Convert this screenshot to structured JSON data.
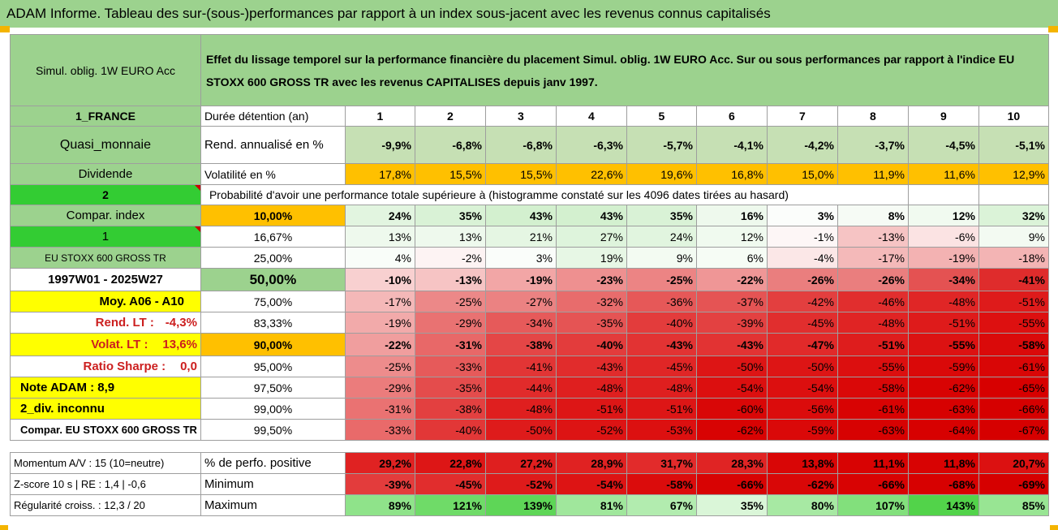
{
  "title": "ADAM Informe. Tableau des sur-(sous-)performances par rapport à un index sous-jacent avec les revenus connus capitalisés",
  "header": {
    "fund_name": "Simul. oblig. 1W EURO Acc",
    "description": "Effet du lissage temporel sur la performance financière du placement Simul. oblig. 1W EURO Acc. Sur ou sous performances par rapport à l'indice EU STOXX 600 GROSS TR avec les revenus CAPITALISES depuis janv 1997."
  },
  "duration_label": "Durée détention (an)",
  "durations": [
    "1",
    "2",
    "3",
    "4",
    "5",
    "6",
    "7",
    "8",
    "9",
    "10"
  ],
  "rend_label": "Rend. annualisé en %",
  "rend": [
    "-9,9%",
    "-6,8%",
    "-6,8%",
    "-6,3%",
    "-5,7%",
    "-4,1%",
    "-4,2%",
    "-3,7%",
    "-4,5%",
    "-5,1%"
  ],
  "vol_label": "Volatilité en %",
  "vol": [
    "17,8%",
    "15,5%",
    "15,5%",
    "22,6%",
    "19,6%",
    "16,8%",
    "15,0%",
    "11,9%",
    "11,6%",
    "12,9%"
  ],
  "prob_label": "Probabilité d'avoir une performance totale supérieure à (histogramme constaté sur les 4096 dates tirées au hasard)",
  "left": {
    "country": "1_FRANCE",
    "category": "Quasi_monnaie",
    "dividend": "Dividende",
    "num2": "2",
    "compar_index": "Compar. index",
    "num1": "1",
    "index_name": "EU STOXX 600 GROSS TR",
    "period": "1997W01 - 2025W27",
    "moy": "Moy. A06 - A10",
    "rend_lt_label": "Rend. LT :",
    "rend_lt_value": "-4,3%",
    "volat_lt_label": "Volat. LT :",
    "volat_lt_value": "13,6%",
    "sharpe_label": "Ratio Sharpe :",
    "sharpe_value": "0,0",
    "note": "Note ADAM : 8,9",
    "div": "2_div. inconnu",
    "compar_full": "Compar. EU STOXX 600 GROSS TR"
  },
  "quantiles": [
    {
      "q": "10,00%",
      "values": [
        "24%",
        "35%",
        "43%",
        "43%",
        "35%",
        "16%",
        "3%",
        "8%",
        "12%",
        "32%"
      ]
    },
    {
      "q": "16,67%",
      "values": [
        "13%",
        "13%",
        "21%",
        "27%",
        "24%",
        "12%",
        "-1%",
        "-13%",
        "-6%",
        "9%"
      ]
    },
    {
      "q": "25,00%",
      "values": [
        "4%",
        "-2%",
        "3%",
        "19%",
        "9%",
        "6%",
        "-4%",
        "-17%",
        "-19%",
        "-18%"
      ]
    },
    {
      "q": "50,00%",
      "values": [
        "-10%",
        "-13%",
        "-19%",
        "-23%",
        "-25%",
        "-22%",
        "-26%",
        "-26%",
        "-34%",
        "-41%"
      ]
    },
    {
      "q": "75,00%",
      "values": [
        "-17%",
        "-25%",
        "-27%",
        "-32%",
        "-36%",
        "-37%",
        "-42%",
        "-46%",
        "-48%",
        "-51%"
      ]
    },
    {
      "q": "83,33%",
      "values": [
        "-19%",
        "-29%",
        "-34%",
        "-35%",
        "-40%",
        "-39%",
        "-45%",
        "-48%",
        "-51%",
        "-55%"
      ]
    },
    {
      "q": "90,00%",
      "values": [
        "-22%",
        "-31%",
        "-38%",
        "-40%",
        "-43%",
        "-43%",
        "-47%",
        "-51%",
        "-55%",
        "-58%"
      ]
    },
    {
      "q": "95,00%",
      "values": [
        "-25%",
        "-33%",
        "-41%",
        "-43%",
        "-45%",
        "-50%",
        "-50%",
        "-55%",
        "-59%",
        "-61%"
      ]
    },
    {
      "q": "97,50%",
      "values": [
        "-29%",
        "-35%",
        "-44%",
        "-48%",
        "-48%",
        "-54%",
        "-54%",
        "-58%",
        "-62%",
        "-65%"
      ]
    },
    {
      "q": "99,00%",
      "values": [
        "-31%",
        "-38%",
        "-48%",
        "-51%",
        "-51%",
        "-60%",
        "-56%",
        "-61%",
        "-63%",
        "-66%"
      ]
    },
    {
      "q": "99,50%",
      "values": [
        "-33%",
        "-40%",
        "-50%",
        "-52%",
        "-53%",
        "-62%",
        "-59%",
        "-63%",
        "-64%",
        "-67%"
      ]
    }
  ],
  "footer": {
    "momentum": "Momentum A/V : 15 (10=neutre)",
    "zscore": "Z-score 10 s | RE : 1,4 | -0,6",
    "regularite": "Régularité croiss. : 12,3 / 20",
    "pos_label": "% de perfo. positive",
    "pos": [
      "29,2%",
      "22,8%",
      "27,2%",
      "28,9%",
      "31,7%",
      "28,3%",
      "13,8%",
      "11,1%",
      "11,8%",
      "20,7%"
    ],
    "min_label": "Minimum",
    "min": [
      "-39%",
      "-45%",
      "-52%",
      "-54%",
      "-58%",
      "-66%",
      "-62%",
      "-66%",
      "-68%",
      "-69%"
    ],
    "max_label": "Maximum",
    "max": [
      "89%",
      "121%",
      "139%",
      "81%",
      "67%",
      "35%",
      "80%",
      "107%",
      "143%",
      "85%"
    ]
  },
  "colors": {
    "title_bg": "#9cd28e",
    "orange": "#ffc000",
    "yellow": "#ffff00",
    "bright_green": "#33cc33",
    "label_red": "#cc1f1f"
  }
}
